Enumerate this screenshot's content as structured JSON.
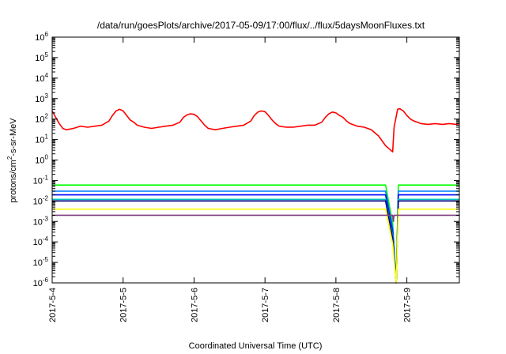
{
  "chart_data": {
    "type": "line",
    "title": "/data/run/goesPlots/archive/2017-05-09/17:00/flux/../flux/5daysMoonFluxes.txt",
    "xlabel": "Coordinated Universal Time (UTC)",
    "ylabel_parts": [
      "protons/cm",
      "2",
      "-s-sr-MeV"
    ],
    "y_scale": "log",
    "ylim": [
      1e-06,
      1000000.0
    ],
    "y_ticks": [
      {
        "exp": "-6"
      },
      {
        "exp": "-5"
      },
      {
        "exp": "-4"
      },
      {
        "exp": "-3"
      },
      {
        "exp": "-2"
      },
      {
        "exp": "-1"
      },
      {
        "exp": "0"
      },
      {
        "exp": "1"
      },
      {
        "exp": "2"
      },
      {
        "exp": "3"
      },
      {
        "exp": "4"
      },
      {
        "exp": "5"
      },
      {
        "exp": "6"
      }
    ],
    "y_tick_base": "10",
    "x_range_days": [
      0,
      5.74
    ],
    "x_ticks": [
      "2017-5-4",
      "2017-5-5",
      "2017-5-6",
      "2017-5-7",
      "2017-5-8",
      "2017-5-9"
    ],
    "grid": false,
    "legend": "none",
    "dropout_day": 4.8,
    "series": [
      {
        "color": "#ff0000",
        "values": [
          [
            0.0,
            250
          ],
          [
            0.05,
            120
          ],
          [
            0.1,
            60
          ],
          [
            0.15,
            35
          ],
          [
            0.2,
            30
          ],
          [
            0.3,
            35
          ],
          [
            0.4,
            45
          ],
          [
            0.5,
            40
          ],
          [
            0.6,
            45
          ],
          [
            0.7,
            50
          ],
          [
            0.8,
            80
          ],
          [
            0.85,
            150
          ],
          [
            0.9,
            250
          ],
          [
            0.95,
            300
          ],
          [
            1.0,
            250
          ],
          [
            1.05,
            150
          ],
          [
            1.1,
            90
          ],
          [
            1.15,
            70
          ],
          [
            1.2,
            50
          ],
          [
            1.3,
            40
          ],
          [
            1.4,
            35
          ],
          [
            1.5,
            40
          ],
          [
            1.6,
            45
          ],
          [
            1.7,
            50
          ],
          [
            1.8,
            70
          ],
          [
            1.85,
            120
          ],
          [
            1.9,
            160
          ],
          [
            1.95,
            180
          ],
          [
            2.0,
            170
          ],
          [
            2.05,
            130
          ],
          [
            2.1,
            80
          ],
          [
            2.15,
            50
          ],
          [
            2.2,
            35
          ],
          [
            2.3,
            30
          ],
          [
            2.4,
            35
          ],
          [
            2.5,
            40
          ],
          [
            2.6,
            45
          ],
          [
            2.7,
            50
          ],
          [
            2.8,
            80
          ],
          [
            2.85,
            150
          ],
          [
            2.9,
            220
          ],
          [
            2.95,
            250
          ],
          [
            3.0,
            230
          ],
          [
            3.05,
            150
          ],
          [
            3.1,
            90
          ],
          [
            3.15,
            60
          ],
          [
            3.2,
            45
          ],
          [
            3.3,
            40
          ],
          [
            3.4,
            40
          ],
          [
            3.5,
            45
          ],
          [
            3.6,
            50
          ],
          [
            3.7,
            50
          ],
          [
            3.8,
            70
          ],
          [
            3.85,
            120
          ],
          [
            3.9,
            180
          ],
          [
            3.95,
            220
          ],
          [
            4.0,
            200
          ],
          [
            4.05,
            150
          ],
          [
            4.1,
            120
          ],
          [
            4.15,
            80
          ],
          [
            4.2,
            60
          ],
          [
            4.3,
            45
          ],
          [
            4.4,
            40
          ],
          [
            4.5,
            30
          ],
          [
            4.6,
            15
          ],
          [
            4.7,
            5
          ],
          [
            4.8,
            2.5
          ],
          [
            4.82,
            40
          ],
          [
            4.87,
            300
          ],
          [
            4.9,
            320
          ],
          [
            4.95,
            250
          ],
          [
            5.0,
            150
          ],
          [
            5.05,
            100
          ],
          [
            5.1,
            80
          ],
          [
            5.2,
            60
          ],
          [
            5.3,
            55
          ],
          [
            5.4,
            60
          ],
          [
            5.5,
            55
          ],
          [
            5.6,
            60
          ],
          [
            5.7,
            55
          ],
          [
            5.74,
            60
          ]
        ]
      },
      {
        "color": "#00ff00",
        "values": [
          [
            0.0,
            0.06
          ],
          [
            0.5,
            0.06
          ],
          [
            1.0,
            0.06
          ],
          [
            1.5,
            0.06
          ],
          [
            2.0,
            0.06
          ],
          [
            2.5,
            0.06
          ],
          [
            3.0,
            0.06
          ],
          [
            3.5,
            0.06
          ],
          [
            4.0,
            0.06
          ],
          [
            4.5,
            0.06
          ],
          [
            4.7,
            0.06
          ],
          [
            4.8,
            0.0008
          ],
          [
            4.85,
            1e-06
          ],
          [
            4.88,
            0.06
          ],
          [
            5.0,
            0.06
          ],
          [
            5.5,
            0.06
          ],
          [
            5.74,
            0.06
          ]
        ]
      },
      {
        "color": "#0080ff",
        "values": [
          [
            0.0,
            0.03
          ],
          [
            0.5,
            0.03
          ],
          [
            1.0,
            0.03
          ],
          [
            1.5,
            0.03
          ],
          [
            2.0,
            0.03
          ],
          [
            2.5,
            0.03
          ],
          [
            3.0,
            0.03
          ],
          [
            3.5,
            0.03
          ],
          [
            4.0,
            0.03
          ],
          [
            4.5,
            0.03
          ],
          [
            4.7,
            0.03
          ],
          [
            4.8,
            0.0005
          ],
          [
            4.85,
            1e-06
          ],
          [
            4.88,
            0.03
          ],
          [
            5.0,
            0.03
          ],
          [
            5.5,
            0.03
          ],
          [
            5.74,
            0.03
          ]
        ]
      },
      {
        "color": "#0000ff",
        "values": [
          [
            0.0,
            0.02
          ],
          [
            0.5,
            0.02
          ],
          [
            1.0,
            0.02
          ],
          [
            1.5,
            0.02
          ],
          [
            2.0,
            0.02
          ],
          [
            2.5,
            0.02
          ],
          [
            3.0,
            0.02
          ],
          [
            3.5,
            0.02
          ],
          [
            4.0,
            0.02
          ],
          [
            4.5,
            0.02
          ],
          [
            4.7,
            0.02
          ],
          [
            4.8,
            0.0003
          ],
          [
            4.85,
            1e-06
          ],
          [
            4.88,
            0.02
          ],
          [
            5.0,
            0.02
          ],
          [
            5.5,
            0.02
          ],
          [
            5.74,
            0.02
          ]
        ]
      },
      {
        "color": "#00c0c0",
        "values": [
          [
            0.0,
            0.012
          ],
          [
            0.5,
            0.012
          ],
          [
            1.0,
            0.012
          ],
          [
            1.5,
            0.012
          ],
          [
            2.0,
            0.012
          ],
          [
            2.5,
            0.012
          ],
          [
            3.0,
            0.012
          ],
          [
            3.5,
            0.012
          ],
          [
            4.0,
            0.012
          ],
          [
            4.5,
            0.012
          ],
          [
            4.7,
            0.012
          ],
          [
            4.8,
            0.0002
          ],
          [
            4.85,
            1e-06
          ],
          [
            4.88,
            0.012
          ],
          [
            5.0,
            0.012
          ],
          [
            5.5,
            0.012
          ],
          [
            5.74,
            0.012
          ]
        ]
      },
      {
        "color": "#000080",
        "values": [
          [
            0.0,
            0.01
          ],
          [
            0.5,
            0.01
          ],
          [
            1.0,
            0.01
          ],
          [
            1.5,
            0.01
          ],
          [
            2.0,
            0.01
          ],
          [
            2.5,
            0.01
          ],
          [
            3.0,
            0.01
          ],
          [
            3.5,
            0.01
          ],
          [
            4.0,
            0.01
          ],
          [
            4.5,
            0.01
          ],
          [
            4.7,
            0.01
          ],
          [
            4.8,
            0.00015
          ],
          [
            4.85,
            1e-06
          ],
          [
            4.88,
            0.01
          ],
          [
            5.0,
            0.01
          ],
          [
            5.5,
            0.01
          ],
          [
            5.74,
            0.01
          ]
        ]
      },
      {
        "color": "#ffff00",
        "values": [
          [
            0.0,
            0.004
          ],
          [
            0.5,
            0.004
          ],
          [
            1.0,
            0.004
          ],
          [
            1.5,
            0.004
          ],
          [
            2.0,
            0.004
          ],
          [
            2.5,
            0.004
          ],
          [
            3.0,
            0.004
          ],
          [
            3.5,
            0.004
          ],
          [
            4.0,
            0.004
          ],
          [
            4.5,
            0.004
          ],
          [
            4.7,
            0.004
          ],
          [
            4.8,
            8e-05
          ],
          [
            4.85,
            1e-06
          ],
          [
            4.88,
            0.004
          ],
          [
            5.0,
            0.004
          ],
          [
            5.5,
            0.004
          ],
          [
            5.74,
            0.004
          ]
        ]
      },
      {
        "color": "#804080",
        "values": [
          [
            0.0,
            0.002
          ],
          [
            0.5,
            0.002
          ],
          [
            1.0,
            0.002
          ],
          [
            1.5,
            0.002
          ],
          [
            2.0,
            0.002
          ],
          [
            2.5,
            0.002
          ],
          [
            3.0,
            0.002
          ],
          [
            3.5,
            0.002
          ],
          [
            4.0,
            0.002
          ],
          [
            4.5,
            0.002
          ],
          [
            4.7,
            0.002
          ],
          [
            4.8,
            0.002
          ],
          [
            4.81,
            0.001
          ],
          [
            4.82,
            0.002
          ],
          [
            5.0,
            0.002
          ],
          [
            5.5,
            0.002
          ],
          [
            5.74,
            0.002
          ]
        ]
      }
    ]
  }
}
